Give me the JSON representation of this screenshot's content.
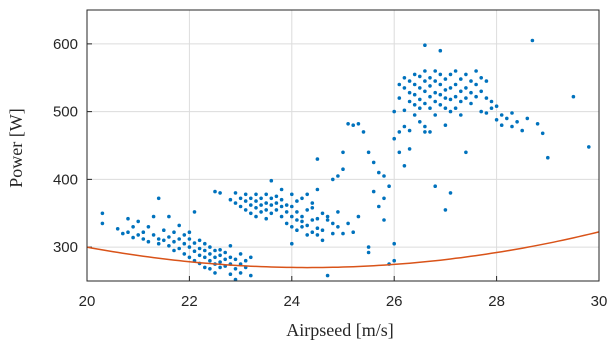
{
  "chart_data": {
    "type": "scatter",
    "xlabel": "Airpseed [m/s]",
    "ylabel": "Power [W]",
    "xlim": [
      20,
      30
    ],
    "ylim": [
      250,
      650
    ],
    "xticks": [
      20,
      22,
      24,
      26,
      28,
      30
    ],
    "yticks": [
      300,
      400,
      500,
      600
    ],
    "grid": true,
    "colors": {
      "points": "#0072BD",
      "fit": "#D95319",
      "grid": "#dcdcdc",
      "axis": "#262626"
    },
    "series": [
      {
        "kind": "points",
        "points": [
          [
            20.3,
            350
          ],
          [
            20.3,
            335
          ],
          [
            20.6,
            327
          ],
          [
            20.7,
            320
          ],
          [
            20.8,
            322
          ],
          [
            20.8,
            342
          ],
          [
            20.9,
            314
          ],
          [
            20.9,
            330
          ],
          [
            21.0,
            318
          ],
          [
            21.0,
            338
          ],
          [
            21.1,
            312
          ],
          [
            21.1,
            322
          ],
          [
            21.2,
            330
          ],
          [
            21.2,
            308
          ],
          [
            21.3,
            318
          ],
          [
            21.3,
            345
          ],
          [
            21.4,
            305
          ],
          [
            21.4,
            312
          ],
          [
            21.4,
            372
          ],
          [
            21.5,
            325
          ],
          [
            21.5,
            310
          ],
          [
            21.6,
            302
          ],
          [
            21.6,
            315
          ],
          [
            21.6,
            345
          ],
          [
            21.7,
            308
          ],
          [
            21.7,
            322
          ],
          [
            21.7,
            295
          ],
          [
            21.8,
            298
          ],
          [
            21.8,
            312
          ],
          [
            21.8,
            332
          ],
          [
            21.9,
            305
          ],
          [
            21.9,
            318
          ],
          [
            21.9,
            290
          ],
          [
            22.0,
            300
          ],
          [
            22.0,
            312
          ],
          [
            22.0,
            285
          ],
          [
            22.0,
            322
          ],
          [
            22.1,
            294
          ],
          [
            22.1,
            306
          ],
          [
            22.1,
            280
          ],
          [
            22.1,
            352
          ],
          [
            22.2,
            298
          ],
          [
            22.2,
            288
          ],
          [
            22.2,
            310
          ],
          [
            22.2,
            276
          ],
          [
            22.3,
            295
          ],
          [
            22.3,
            285
          ],
          [
            22.3,
            270
          ],
          [
            22.3,
            305
          ],
          [
            22.4,
            290
          ],
          [
            22.4,
            280
          ],
          [
            22.4,
            268
          ],
          [
            22.4,
            300
          ],
          [
            22.5,
            285
          ],
          [
            22.5,
            295
          ],
          [
            22.5,
            275
          ],
          [
            22.5,
            262
          ],
          [
            22.6,
            288
          ],
          [
            22.6,
            278
          ],
          [
            22.6,
            296
          ],
          [
            22.6,
            270
          ],
          [
            22.7,
            282
          ],
          [
            22.7,
            272
          ],
          [
            22.7,
            292
          ],
          [
            22.8,
            260
          ],
          [
            22.8,
            285
          ],
          [
            22.8,
            275
          ],
          [
            22.8,
            302
          ],
          [
            22.9,
            282
          ],
          [
            22.9,
            268
          ],
          [
            22.9,
            252
          ],
          [
            23.0,
            275
          ],
          [
            23.0,
            290
          ],
          [
            23.0,
            262
          ],
          [
            23.1,
            280
          ],
          [
            23.1,
            270
          ],
          [
            23.2,
            285
          ],
          [
            23.2,
            258
          ],
          [
            22.6,
            380
          ],
          [
            22.5,
            382
          ],
          [
            22.8,
            370
          ],
          [
            22.9,
            380
          ],
          [
            22.9,
            365
          ],
          [
            23.0,
            372
          ],
          [
            23.0,
            360
          ],
          [
            23.1,
            368
          ],
          [
            23.1,
            355
          ],
          [
            23.1,
            378
          ],
          [
            23.2,
            362
          ],
          [
            23.2,
            350
          ],
          [
            23.2,
            372
          ],
          [
            23.3,
            358
          ],
          [
            23.3,
            368
          ],
          [
            23.3,
            345
          ],
          [
            23.3,
            378
          ],
          [
            23.4,
            362
          ],
          [
            23.4,
            352
          ],
          [
            23.4,
            372
          ],
          [
            23.5,
            365
          ],
          [
            23.5,
            355
          ],
          [
            23.5,
            378
          ],
          [
            23.5,
            342
          ],
          [
            23.6,
            362
          ],
          [
            23.6,
            372
          ],
          [
            23.6,
            350
          ],
          [
            23.6,
            398
          ],
          [
            23.7,
            365
          ],
          [
            23.7,
            355
          ],
          [
            23.7,
            375
          ],
          [
            23.8,
            360
          ],
          [
            23.8,
            345
          ],
          [
            23.8,
            370
          ],
          [
            23.8,
            385
          ],
          [
            23.9,
            352
          ],
          [
            23.9,
            335
          ],
          [
            23.9,
            362
          ],
          [
            24.0,
            345
          ],
          [
            24.0,
            360
          ],
          [
            24.0,
            330
          ],
          [
            24.0,
            378
          ],
          [
            24.1,
            340
          ],
          [
            24.1,
            352
          ],
          [
            24.1,
            325
          ],
          [
            24.1,
            368
          ],
          [
            24.2,
            338
          ],
          [
            24.2,
            345
          ],
          [
            24.2,
            330
          ],
          [
            24.2,
            372
          ],
          [
            24.3,
            332
          ],
          [
            24.3,
            355
          ],
          [
            24.3,
            318
          ],
          [
            24.3,
            378
          ],
          [
            24.4,
            340
          ],
          [
            24.4,
            322
          ],
          [
            24.4,
            358
          ],
          [
            24.4,
            365
          ],
          [
            24.5,
            328
          ],
          [
            24.5,
            342
          ],
          [
            24.5,
            318
          ],
          [
            24.5,
            385
          ],
          [
            24.5,
            430
          ],
          [
            24.6,
            350
          ],
          [
            24.6,
            325
          ],
          [
            24.6,
            310
          ],
          [
            24.7,
            340
          ],
          [
            24.7,
            345
          ],
          [
            24.7,
            258
          ],
          [
            24.8,
            335
          ],
          [
            24.8,
            320
          ],
          [
            24.8,
            400
          ],
          [
            24.9,
            352
          ],
          [
            24.9,
            405
          ],
          [
            24.9,
            330
          ],
          [
            25.0,
            415
          ],
          [
            25.0,
            320
          ],
          [
            25.0,
            440
          ],
          [
            25.1,
            482
          ],
          [
            25.1,
            335
          ],
          [
            25.2,
            480
          ],
          [
            25.2,
            322
          ],
          [
            25.3,
            482
          ],
          [
            25.3,
            345
          ],
          [
            25.4,
            470
          ],
          [
            25.5,
            440
          ],
          [
            25.5,
            300
          ],
          [
            25.5,
            292
          ],
          [
            25.6,
            425
          ],
          [
            25.6,
            382
          ],
          [
            25.7,
            410
          ],
          [
            25.7,
            360
          ],
          [
            25.8,
            405
          ],
          [
            25.8,
            372
          ],
          [
            25.9,
            390
          ],
          [
            25.9,
            275
          ],
          [
            26.0,
            460
          ],
          [
            26.0,
            500
          ],
          [
            26.0,
            305
          ],
          [
            26.0,
            280
          ],
          [
            26.1,
            540
          ],
          [
            26.1,
            520
          ],
          [
            26.1,
            470
          ],
          [
            26.1,
            440
          ],
          [
            26.2,
            550
          ],
          [
            26.2,
            535
          ],
          [
            26.2,
            502
          ],
          [
            26.2,
            478
          ],
          [
            26.3,
            545
          ],
          [
            26.3,
            528
          ],
          [
            26.3,
            515
          ],
          [
            26.3,
            472
          ],
          [
            26.3,
            445
          ],
          [
            26.4,
            555
          ],
          [
            26.4,
            540
          ],
          [
            26.4,
            525
          ],
          [
            26.4,
            510
          ],
          [
            26.4,
            495
          ],
          [
            26.5,
            552
          ],
          [
            26.5,
            535
          ],
          [
            26.5,
            518
          ],
          [
            26.5,
            505
          ],
          [
            26.5,
            485
          ],
          [
            26.6,
            560
          ],
          [
            26.6,
            545
          ],
          [
            26.6,
            530
          ],
          [
            26.6,
            512
          ],
          [
            26.6,
            478
          ],
          [
            26.6,
            598
          ],
          [
            26.7,
            550
          ],
          [
            26.7,
            538
          ],
          [
            26.7,
            522
          ],
          [
            26.7,
            505
          ],
          [
            26.7,
            470
          ],
          [
            26.8,
            560
          ],
          [
            26.8,
            545
          ],
          [
            26.8,
            528
          ],
          [
            26.8,
            515
          ],
          [
            26.8,
            495
          ],
          [
            26.8,
            390
          ],
          [
            26.9,
            555
          ],
          [
            26.9,
            540
          ],
          [
            26.9,
            525
          ],
          [
            26.9,
            510
          ],
          [
            26.9,
            590
          ],
          [
            27.0,
            548
          ],
          [
            27.0,
            532
          ],
          [
            27.0,
            520
          ],
          [
            27.0,
            505
          ],
          [
            27.0,
            480
          ],
          [
            27.1,
            555
          ],
          [
            27.1,
            535
          ],
          [
            27.1,
            518
          ],
          [
            27.1,
            500
          ],
          [
            27.1,
            380
          ],
          [
            27.2,
            560
          ],
          [
            27.2,
            540
          ],
          [
            27.2,
            522
          ],
          [
            27.2,
            505
          ],
          [
            27.3,
            548
          ],
          [
            27.3,
            530
          ],
          [
            27.3,
            515
          ],
          [
            27.3,
            495
          ],
          [
            27.4,
            555
          ],
          [
            27.4,
            535
          ],
          [
            27.4,
            520
          ],
          [
            27.5,
            545
          ],
          [
            27.5,
            528
          ],
          [
            27.5,
            512
          ],
          [
            27.6,
            560
          ],
          [
            27.6,
            540
          ],
          [
            27.6,
            522
          ],
          [
            27.7,
            550
          ],
          [
            27.7,
            530
          ],
          [
            27.7,
            500
          ],
          [
            27.8,
            545
          ],
          [
            27.8,
            520
          ],
          [
            27.8,
            498
          ],
          [
            27.9,
            515
          ],
          [
            27.9,
            505
          ],
          [
            28.0,
            508
          ],
          [
            28.0,
            488
          ],
          [
            28.1,
            495
          ],
          [
            28.1,
            480
          ],
          [
            28.2,
            490
          ],
          [
            28.3,
            478
          ],
          [
            28.3,
            498
          ],
          [
            28.4,
            485
          ],
          [
            28.5,
            472
          ],
          [
            28.6,
            490
          ],
          [
            28.7,
            605
          ],
          [
            28.8,
            482
          ],
          [
            28.9,
            468
          ],
          [
            29.0,
            432
          ],
          [
            29.5,
            522
          ],
          [
            29.8,
            448
          ],
          [
            27.0,
            355
          ],
          [
            26.6,
            470
          ],
          [
            26.2,
            420
          ],
          [
            27.4,
            440
          ],
          [
            25.8,
            340
          ],
          [
            24.0,
            305
          ]
        ]
      },
      {
        "kind": "fit",
        "coefficients": [
          1.625,
          -14.0,
          300
        ],
        "center": 20
      }
    ]
  }
}
